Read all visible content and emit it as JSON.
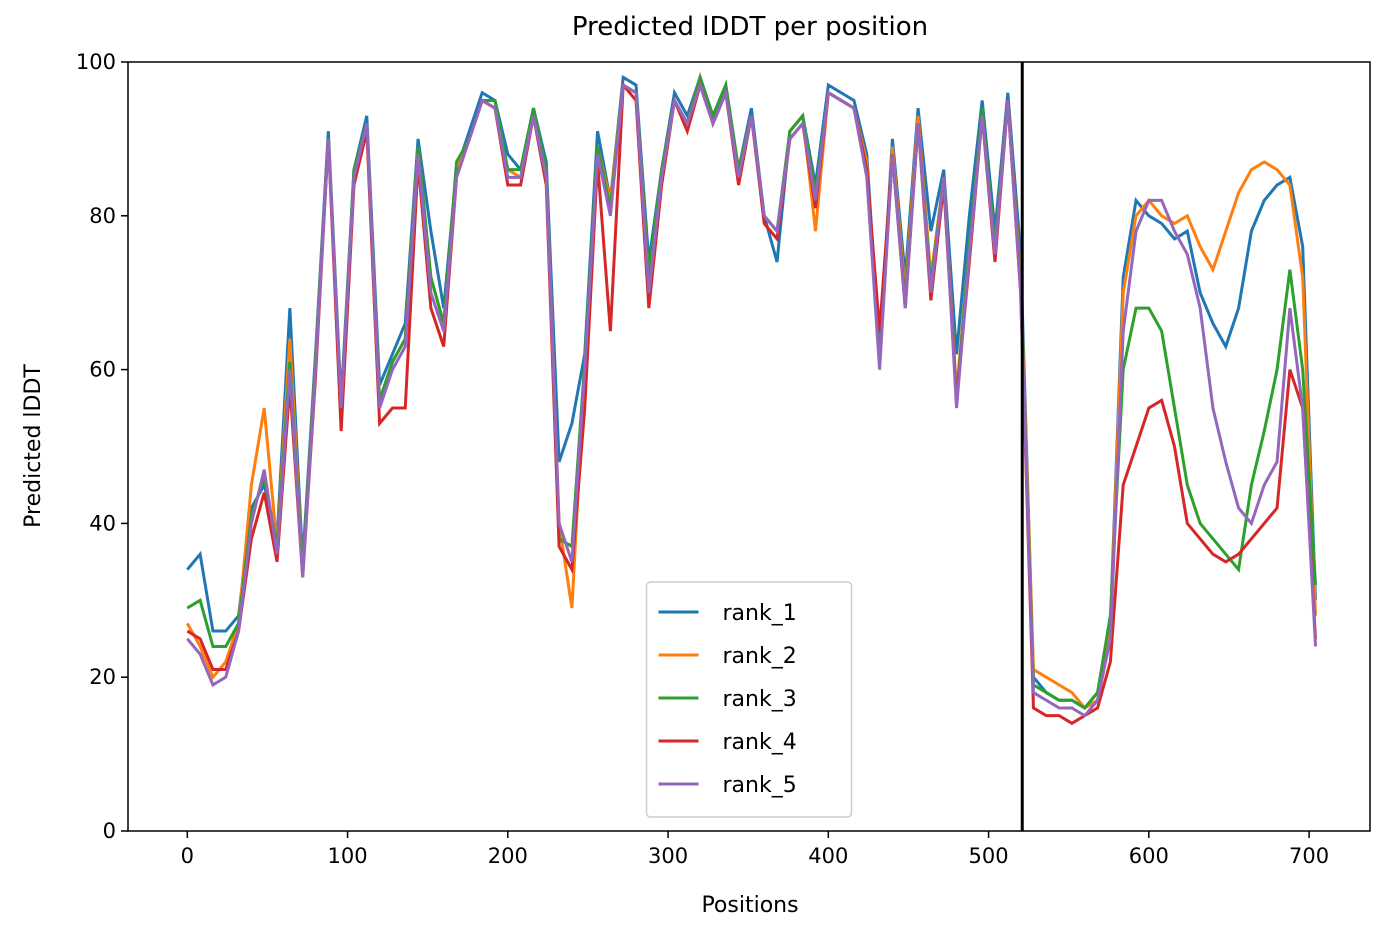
{
  "chart_data": {
    "type": "line",
    "title": "Predicted lDDT per position",
    "xlabel": "Positions",
    "ylabel": "Predicted lDDT",
    "xlim": [
      -37,
      738
    ],
    "ylim": [
      0,
      100
    ],
    "xticks": [
      0,
      100,
      200,
      300,
      400,
      500,
      600,
      700
    ],
    "yticks": [
      0,
      20,
      40,
      60,
      80,
      100
    ],
    "vline": 521,
    "vline_color": "#000000",
    "legend": "lower center",
    "grid": false,
    "x": [
      0,
      8,
      16,
      24,
      32,
      40,
      48,
      56,
      64,
      72,
      80,
      88,
      96,
      104,
      112,
      120,
      128,
      136,
      144,
      152,
      160,
      168,
      176,
      184,
      192,
      200,
      208,
      216,
      224,
      232,
      240,
      248,
      256,
      264,
      272,
      280,
      288,
      296,
      304,
      312,
      320,
      328,
      336,
      344,
      352,
      360,
      368,
      376,
      384,
      392,
      400,
      408,
      416,
      424,
      432,
      440,
      448,
      456,
      464,
      472,
      480,
      488,
      496,
      504,
      512,
      520,
      528,
      536,
      544,
      552,
      560,
      568,
      576,
      584,
      592,
      600,
      608,
      616,
      624,
      632,
      640,
      648,
      656,
      664,
      672,
      680,
      688,
      696,
      704
    ],
    "series": [
      {
        "name": "rank_1",
        "color": "#1f77b4",
        "values": [
          34,
          36,
          26,
          26,
          28,
          42,
          45,
          38,
          68,
          35,
          62,
          91,
          56,
          86,
          93,
          58,
          62,
          66,
          90,
          78,
          68,
          86,
          91,
          96,
          95,
          88,
          86,
          94,
          87,
          48,
          53,
          62,
          91,
          82,
          98,
          97,
          74,
          86,
          96,
          93,
          98,
          93,
          97,
          86,
          94,
          80,
          74,
          91,
          93,
          84,
          97,
          96,
          95,
          88,
          62,
          90,
          72,
          94,
          78,
          86,
          62,
          80,
          95,
          78,
          96,
          75,
          20,
          18,
          17,
          17,
          16,
          18,
          27,
          72,
          82,
          80,
          79,
          77,
          78,
          70,
          66,
          63,
          68,
          78,
          82,
          84,
          85,
          76,
          30
        ]
      },
      {
        "name": "rank_2",
        "color": "#ff7f0e",
        "values": [
          27,
          24,
          20,
          22,
          27,
          45,
          55,
          37,
          64,
          34,
          61,
          90,
          55,
          85,
          92,
          56,
          61,
          64,
          89,
          72,
          66,
          86,
          90,
          95,
          94,
          86,
          85,
          93,
          86,
          40,
          29,
          60,
          89,
          82,
          97,
          96,
          72,
          86,
          95,
          92,
          98,
          92,
          96,
          86,
          93,
          80,
          78,
          91,
          93,
          78,
          96,
          95,
          94,
          87,
          61,
          89,
          70,
          93,
          72,
          85,
          57,
          76,
          93,
          76,
          95,
          72,
          21,
          20,
          19,
          18,
          16,
          17,
          26,
          70,
          80,
          82,
          80,
          79,
          80,
          76,
          73,
          78,
          83,
          86,
          87,
          86,
          84,
          72,
          28
        ]
      },
      {
        "name": "rank_3",
        "color": "#2ca02c",
        "values": [
          29,
          30,
          24,
          24,
          27,
          41,
          46,
          37,
          61,
          34,
          61,
          90,
          55,
          86,
          92,
          56,
          61,
          64,
          89,
          72,
          66,
          87,
          90,
          95,
          95,
          86,
          86,
          94,
          86,
          38,
          37,
          61,
          89,
          81,
          97,
          96,
          72,
          86,
          95,
          92,
          98,
          93,
          97,
          86,
          93,
          80,
          78,
          91,
          93,
          83,
          96,
          95,
          94,
          86,
          61,
          88,
          69,
          92,
          71,
          85,
          56,
          76,
          94,
          76,
          95,
          71,
          19,
          18,
          17,
          17,
          16,
          18,
          28,
          60,
          68,
          68,
          65,
          55,
          45,
          40,
          38,
          36,
          34,
          45,
          52,
          60,
          73,
          60,
          32
        ]
      },
      {
        "name": "rank_4",
        "color": "#d62728",
        "values": [
          26,
          25,
          21,
          21,
          26,
          38,
          44,
          35,
          58,
          33,
          59,
          90,
          52,
          84,
          91,
          53,
          55,
          55,
          87,
          68,
          63,
          85,
          90,
          95,
          94,
          84,
          84,
          93,
          84,
          37,
          34,
          55,
          87,
          65,
          97,
          95,
          68,
          84,
          95,
          91,
          97,
          92,
          96,
          84,
          93,
          79,
          77,
          90,
          92,
          81,
          96,
          95,
          94,
          86,
          65,
          88,
          68,
          92,
          69,
          84,
          56,
          74,
          93,
          74,
          95,
          70,
          16,
          15,
          15,
          14,
          15,
          16,
          22,
          45,
          50,
          55,
          56,
          50,
          40,
          38,
          36,
          35,
          36,
          38,
          40,
          42,
          60,
          55,
          25
        ]
      },
      {
        "name": "rank_5",
        "color": "#9467bd",
        "values": [
          25,
          23,
          19,
          20,
          26,
          40,
          47,
          36,
          60,
          33,
          60,
          90,
          55,
          85,
          92,
          55,
          60,
          63,
          88,
          70,
          65,
          85,
          90,
          95,
          94,
          85,
          85,
          93,
          85,
          40,
          35,
          60,
          88,
          80,
          97,
          96,
          70,
          85,
          95,
          92,
          97,
          92,
          96,
          85,
          93,
          80,
          78,
          90,
          92,
          82,
          96,
          95,
          94,
          85,
          60,
          88,
          68,
          92,
          70,
          85,
          55,
          75,
          93,
          75,
          95,
          70,
          18,
          17,
          16,
          16,
          15,
          17,
          25,
          65,
          78,
          82,
          82,
          78,
          75,
          68,
          55,
          48,
          42,
          40,
          45,
          48,
          68,
          55,
          24
        ]
      }
    ]
  }
}
